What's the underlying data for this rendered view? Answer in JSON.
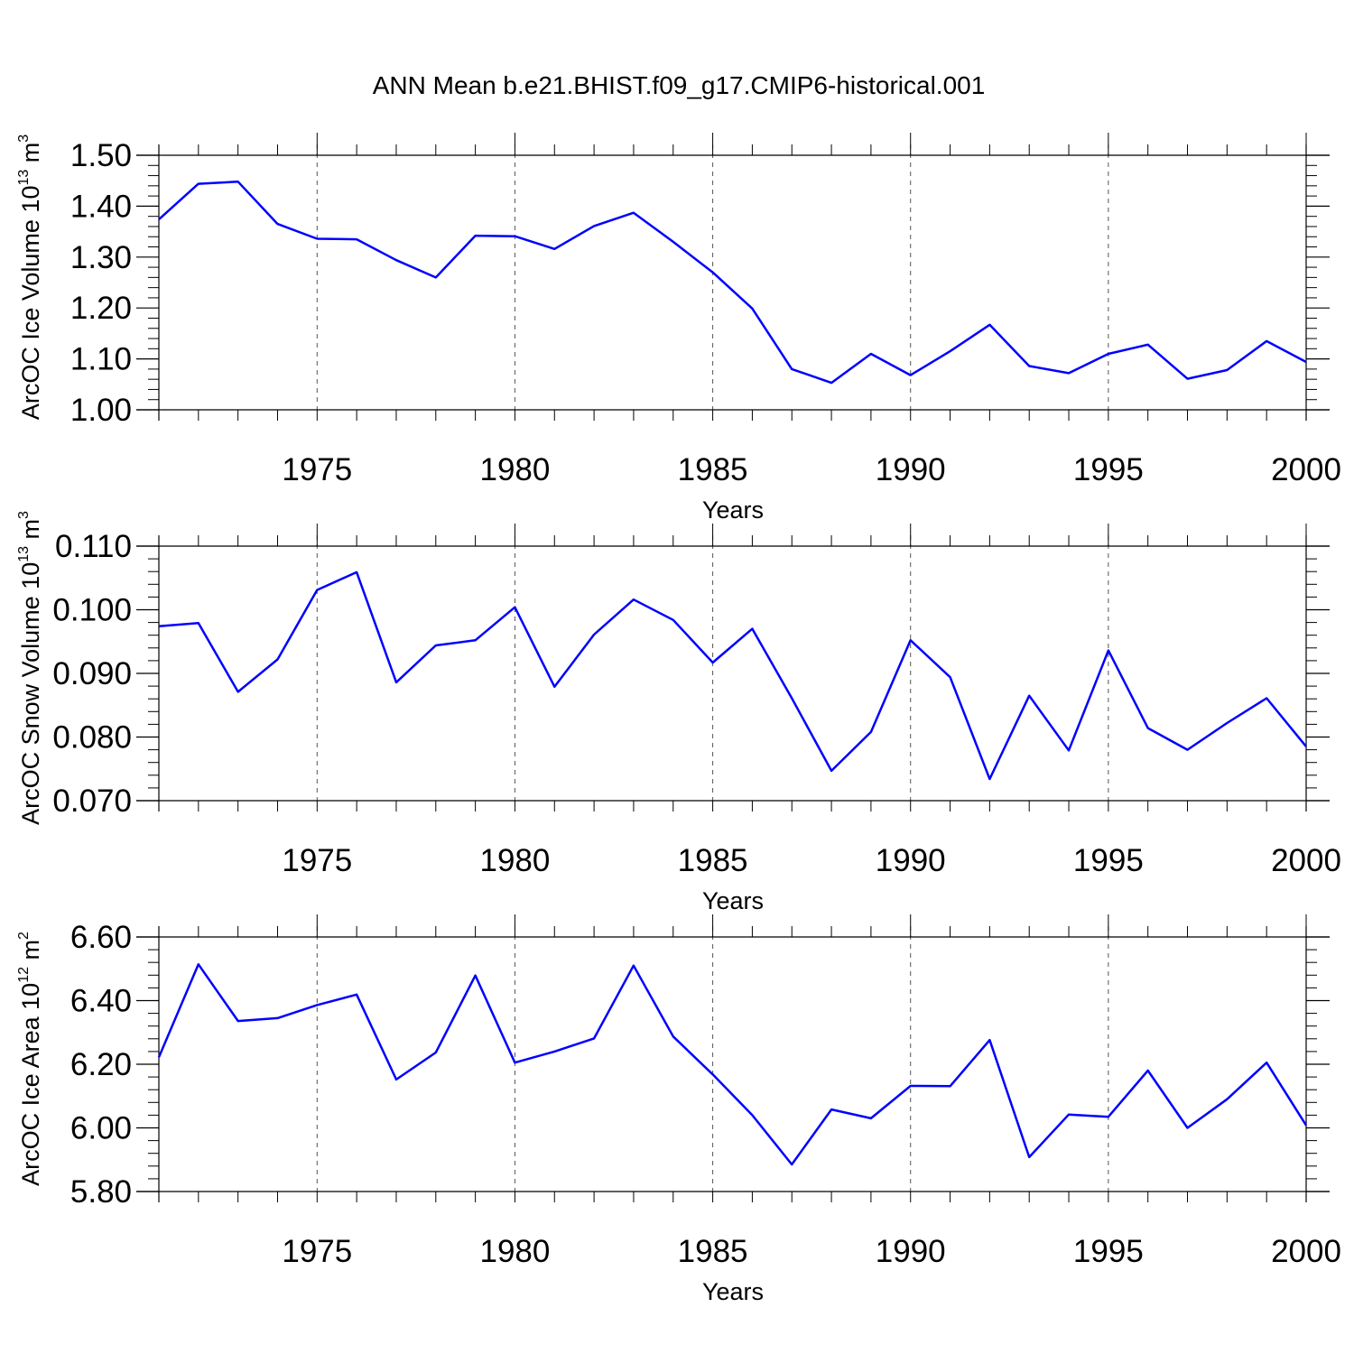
{
  "title": "ANN Mean b.e21.BHIST.f09_g17.CMIP6-historical.001",
  "colors": {
    "line": "#0000ff",
    "axis": "#000000",
    "grid": "#555555"
  },
  "chart_data": [
    {
      "type": "line",
      "xlabel": "Years",
      "ylabel": {
        "text": "ArcOC Ice Volume 10",
        "exp1": "13",
        "mid": " m",
        "exp2": "3"
      },
      "xlim": [
        1971,
        2000
      ],
      "ylim": [
        1.0,
        1.5
      ],
      "xticks": [
        "1975",
        "1980",
        "1985",
        "1990",
        "1995",
        "2000"
      ],
      "yticks": [
        "1.00",
        "1.10",
        "1.20",
        "1.30",
        "1.40",
        "1.50"
      ],
      "grid": "vertical dashed at major x ticks",
      "series": [
        {
          "x": [
            1971,
            1972,
            1973,
            1974,
            1975,
            1976,
            1977,
            1978,
            1979,
            1980,
            1981,
            1982,
            1983,
            1984,
            1985,
            1986,
            1987,
            1988,
            1989,
            1990,
            1991,
            1992,
            1993,
            1994,
            1995,
            1996,
            1997,
            1998,
            1999,
            2000
          ],
          "values": [
            1.374,
            1.444,
            1.448,
            1.365,
            1.336,
            1.335,
            1.294,
            1.26,
            1.342,
            1.341,
            1.316,
            1.361,
            1.387,
            1.33,
            1.27,
            1.199,
            1.08,
            1.053,
            1.11,
            1.068,
            1.115,
            1.167,
            1.086,
            1.072,
            1.11,
            1.128,
            1.061,
            1.078,
            1.135,
            1.094
          ]
        }
      ]
    },
    {
      "type": "line",
      "xlabel": "Years",
      "ylabel": {
        "text": "ArcOC Snow Volume 10",
        "exp1": "13",
        "mid": " m",
        "exp2": "3"
      },
      "xlim": [
        1971,
        2000
      ],
      "ylim": [
        0.07,
        0.11
      ],
      "xticks": [
        "1975",
        "1980",
        "1985",
        "1990",
        "1995",
        "2000"
      ],
      "yticks": [
        "0.070",
        "0.080",
        "0.090",
        "0.100",
        "0.110"
      ],
      "grid": "vertical dashed at major x ticks",
      "series": [
        {
          "x": [
            1971,
            1972,
            1973,
            1974,
            1975,
            1976,
            1977,
            1978,
            1979,
            1980,
            1981,
            1982,
            1983,
            1984,
            1985,
            1986,
            1987,
            1988,
            1989,
            1990,
            1991,
            1992,
            1993,
            1994,
            1995,
            1996,
            1997,
            1998,
            1999,
            2000
          ],
          "values": [
            0.0974,
            0.0979,
            0.0871,
            0.0922,
            0.1031,
            0.1059,
            0.0886,
            0.0944,
            0.0952,
            0.1004,
            0.0879,
            0.0961,
            0.1016,
            0.0984,
            0.0917,
            0.097,
            0.0861,
            0.0747,
            0.0808,
            0.0952,
            0.0894,
            0.0734,
            0.0865,
            0.0779,
            0.0936,
            0.0814,
            0.078,
            0.0822,
            0.0861,
            0.0785
          ]
        }
      ]
    },
    {
      "type": "line",
      "xlabel": "Years",
      "ylabel": {
        "text": "ArcOC Ice Area 10",
        "exp1": "12",
        "mid": " m",
        "exp2": "2"
      },
      "xlim": [
        1971,
        2000
      ],
      "ylim": [
        5.8,
        6.6
      ],
      "xticks": [
        "1975",
        "1980",
        "1985",
        "1990",
        "1995",
        "2000"
      ],
      "yticks": [
        "5.80",
        "6.00",
        "6.20",
        "6.40",
        "6.60"
      ],
      "grid": "vertical dashed at major x ticks",
      "series": [
        {
          "x": [
            1971,
            1972,
            1973,
            1974,
            1975,
            1976,
            1977,
            1978,
            1979,
            1980,
            1981,
            1982,
            1983,
            1984,
            1985,
            1986,
            1987,
            1988,
            1989,
            1990,
            1991,
            1992,
            1993,
            1994,
            1995,
            1996,
            1997,
            1998,
            1999,
            2000
          ],
          "values": [
            6.222,
            6.514,
            6.336,
            6.345,
            6.386,
            6.419,
            6.152,
            6.237,
            6.479,
            6.205,
            6.24,
            6.281,
            6.51,
            6.287,
            6.168,
            6.04,
            5.885,
            6.058,
            6.03,
            6.132,
            6.131,
            6.276,
            5.908,
            6.042,
            6.035,
            6.18,
            6.0,
            6.09,
            6.205,
            6.008
          ]
        }
      ]
    }
  ]
}
